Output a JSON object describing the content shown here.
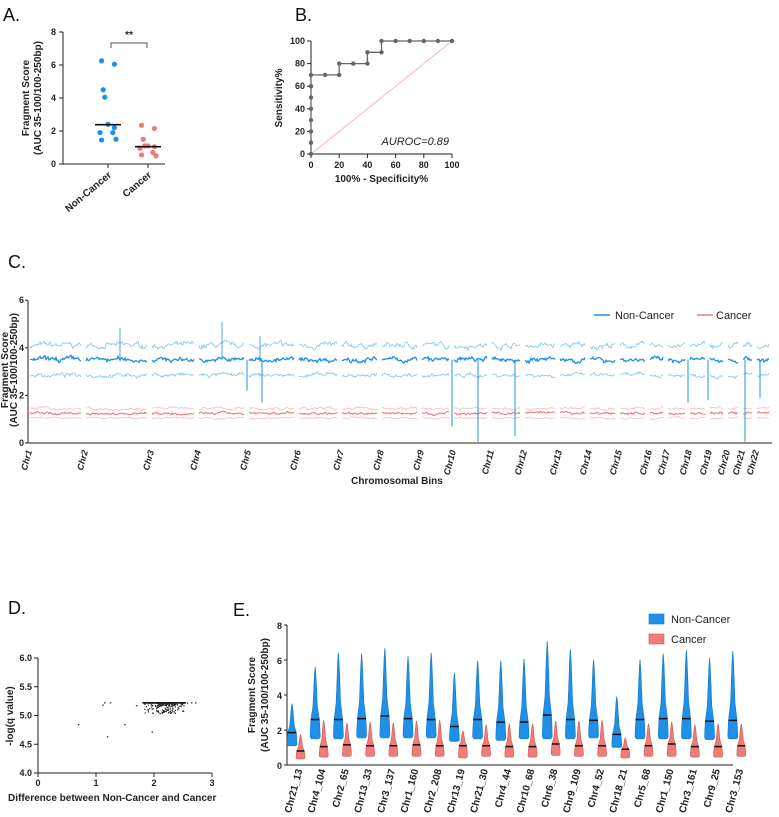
{
  "colors": {
    "non_cancer": "#1e90e8",
    "cancer": "#f07b78",
    "roc": "#666666",
    "diagonal": "#f2b8b8"
  },
  "chart_data": [
    {
      "panel": "A.",
      "type": "scatter",
      "ylabel_line1": "Fragment Score",
      "ylabel_line2": "(AUC 35-100/100-250bp)",
      "ylim": [
        0,
        8
      ],
      "yticks": [
        "0",
        "2",
        "4",
        "6",
        "8"
      ],
      "categories": [
        "Non-Cancer",
        "Cancer"
      ],
      "significance": "**",
      "series": [
        {
          "name": "Non-Cancer",
          "values": [
            6.25,
            6.05,
            4.5,
            4.05,
            2.4,
            2.2,
            1.9,
            1.9,
            1.45,
            1.5
          ],
          "median": 2.38
        },
        {
          "name": "Cancer",
          "values": [
            2.35,
            2.15,
            1.5,
            1.1,
            1.1,
            1.05,
            0.95,
            0.7,
            0.55,
            0.5
          ],
          "median": 1.05
        }
      ]
    },
    {
      "panel": "B.",
      "type": "line",
      "xlabel": "100% - Specificity%",
      "ylabel": "Sensitivity%",
      "xlim": [
        0,
        100
      ],
      "ylim": [
        0,
        100
      ],
      "xticks": [
        "0",
        "20",
        "40",
        "60",
        "80",
        "100"
      ],
      "yticks": [
        "0",
        "20",
        "40",
        "60",
        "80",
        "100"
      ],
      "annotation": "AUROC=0.89",
      "x": [
        0,
        0,
        0,
        0,
        0,
        0,
        0,
        0,
        10,
        20,
        20,
        30,
        40,
        40,
        50,
        50,
        60,
        70,
        80,
        90,
        100
      ],
      "y": [
        0,
        10,
        20,
        30,
        40,
        50,
        60,
        70,
        70,
        70,
        80,
        80,
        80,
        90,
        90,
        100,
        100,
        100,
        100,
        100,
        100
      ]
    },
    {
      "panel": "C.",
      "type": "line",
      "xlabel": "Chromosomal Bins",
      "ylabel_line1": "Fragment Score",
      "ylabel_line2": "(AUC 35-100/100-250bp)",
      "ylim": [
        0,
        6
      ],
      "yticks": [
        "0",
        "2",
        "4",
        "6"
      ],
      "xticks": [
        "Chr1",
        "Chr2",
        "Chr3",
        "Chr4",
        "Chr5",
        "Chr6",
        "Chr7",
        "Chr8",
        "Chr9",
        "Chr10",
        "Chr11",
        "Chr12",
        "Chr13",
        "Chr14",
        "Chr15",
        "Chr16",
        "Chr17",
        "Chr18",
        "Chr19",
        "Chr20",
        "Chr21",
        "Chr22"
      ],
      "legend": "top-right",
      "series": [
        {
          "name": "Non-Cancer",
          "mean": 3.5,
          "band": [
            2.85,
            4.1
          ]
        },
        {
          "name": "Cancer",
          "mean": 1.25,
          "band": [
            1.05,
            1.45
          ]
        }
      ]
    },
    {
      "panel": "D.",
      "type": "scatter",
      "xlabel": "Difference between Non-Cancer and Cancer",
      "ylabel": "-log(q value)",
      "xlim": [
        0,
        3
      ],
      "ylim": [
        4.0,
        6.0
      ],
      "xticks": [
        "0",
        "1",
        "2",
        "3"
      ],
      "yticks": [
        "4.0",
        "4.5",
        "5.0",
        "5.5",
        "6.0"
      ],
      "outliers": [
        [
          0.7,
          4.84
        ],
        [
          1.2,
          4.63
        ],
        [
          1.5,
          4.84
        ],
        [
          1.12,
          5.18
        ],
        [
          1.15,
          5.22
        ],
        [
          1.25,
          5.22
        ],
        [
          1.97,
          4.71
        ],
        [
          1.7,
          5.17
        ],
        [
          2.65,
          5.22
        ],
        [
          2.72,
          5.22
        ]
      ],
      "cluster": {
        "x_range": [
          1.8,
          2.6
        ],
        "y_range": [
          5.03,
          5.22
        ],
        "count": 220
      }
    },
    {
      "panel": "E.",
      "type": "violin",
      "ylabel_line1": "Fragment Score",
      "ylabel_line2": "(AUC 35-100/100-250bp)",
      "ylim": [
        0,
        8
      ],
      "yticks": [
        "0",
        "2",
        "4",
        "6",
        "8"
      ],
      "legend": "top-right",
      "categories": [
        "Chr21_13",
        "Chr4_104",
        "Chr2_65",
        "Chr13_33",
        "Chr3_137",
        "Chr1_160",
        "Chr2_208",
        "Chr13_19",
        "Chr21_30",
        "Chr4_44",
        "Chr10_68",
        "Chr6_38",
        "Chr9_109",
        "Chr4_52",
        "Chr18_21",
        "Chr5_68",
        "Chr1_150",
        "Chr3_161",
        "Chr9_25",
        "Chr3_153"
      ],
      "series": [
        {
          "name": "Non-Cancer",
          "max": [
            3.5,
            5.6,
            6.4,
            6.35,
            6.65,
            6.2,
            6.4,
            5.25,
            5.95,
            5.95,
            6.05,
            7.05,
            6.6,
            6.0,
            3.9,
            6.0,
            6.35,
            6.55,
            6.1,
            6.5
          ],
          "median": [
            1.85,
            2.6,
            2.6,
            2.65,
            2.8,
            2.65,
            2.6,
            2.2,
            2.6,
            2.45,
            2.45,
            2.85,
            2.6,
            2.55,
            1.75,
            2.6,
            2.65,
            2.65,
            2.5,
            2.55
          ],
          "min": [
            1.1,
            1.5,
            1.5,
            1.55,
            1.55,
            1.55,
            1.55,
            1.35,
            1.5,
            1.4,
            1.5,
            1.5,
            1.5,
            1.55,
            1.0,
            1.5,
            1.5,
            1.5,
            1.45,
            1.5
          ]
        },
        {
          "name": "Cancer",
          "max": [
            1.75,
            2.55,
            2.4,
            2.45,
            2.4,
            2.5,
            2.55,
            1.95,
            2.3,
            2.35,
            2.35,
            2.5,
            2.5,
            2.55,
            1.55,
            2.35,
            2.45,
            2.3,
            2.35,
            2.35
          ],
          "median": [
            0.8,
            1.05,
            1.15,
            1.1,
            1.1,
            1.15,
            1.1,
            1.1,
            1.1,
            1.05,
            1.05,
            1.2,
            1.1,
            1.1,
            0.9,
            1.1,
            1.2,
            1.05,
            1.05,
            1.1
          ],
          "min": [
            0.35,
            0.45,
            0.5,
            0.5,
            0.5,
            0.5,
            0.5,
            0.4,
            0.5,
            0.45,
            0.45,
            0.55,
            0.5,
            0.5,
            0.4,
            0.5,
            0.5,
            0.45,
            0.45,
            0.5
          ]
        }
      ]
    }
  ]
}
